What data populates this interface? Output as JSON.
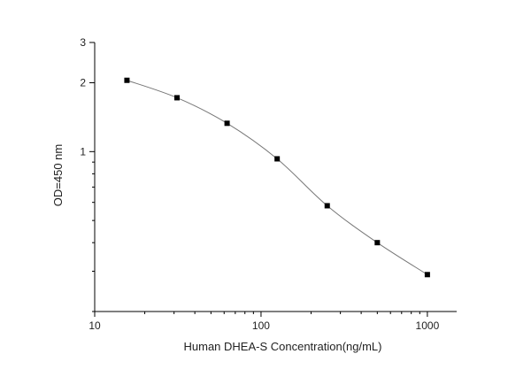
{
  "chart_data": {
    "type": "line",
    "title": "",
    "xlabel": "Human DHEA-S  Concentration(ng/mL)",
    "ylabel": "OD=450 nm",
    "x_scale": "log",
    "y_scale": "log",
    "xlim": [
      10,
      1500
    ],
    "ylim": [
      0.2,
      3
    ],
    "x_ticks": [
      10,
      100,
      1000
    ],
    "x_tick_labels": [
      "10",
      "100",
      "1000"
    ],
    "y_ticks": [
      1,
      2,
      3
    ],
    "y_tick_labels": [
      "1",
      "2",
      "3"
    ],
    "grid": false,
    "legend": "none",
    "series": [
      {
        "x": [
          15.625,
          31.25,
          62.5,
          125,
          250,
          500,
          1000
        ],
        "y": [
          2.05,
          1.72,
          1.33,
          0.93,
          0.58,
          0.4,
          0.29
        ],
        "marker": "square",
        "line_color": "#777777",
        "marker_color": "#000000"
      }
    ]
  }
}
